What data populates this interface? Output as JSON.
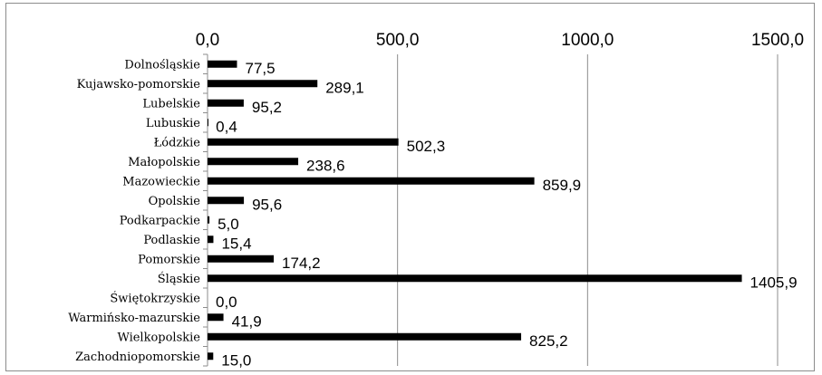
{
  "chart_data": {
    "type": "bar",
    "orientation": "horizontal",
    "axis_position": "top",
    "categories": [
      "Dolnośląskie",
      "Kujawsko-pomorskie",
      "Lubelskie",
      "Lubuskie",
      "Łódzkie",
      "Małopolskie",
      "Mazowieckie",
      "Opolskie",
      "Podkarpackie",
      "Podlaskie",
      "Pomorskie",
      "Śląskie",
      "Świętokrzyskie",
      "Warmińsko-mazurskie",
      "Wielkopolskie",
      "Zachodniopomorskie"
    ],
    "values": [
      77.5,
      289.1,
      95.2,
      0.4,
      502.3,
      238.6,
      859.9,
      95.6,
      5.0,
      15.4,
      174.2,
      1405.9,
      0.0,
      41.9,
      825.2,
      15.0
    ],
    "value_labels": [
      "77,5",
      "289,1",
      "95,2",
      "0,4",
      "502,3",
      "238,6",
      "859,9",
      "95,6",
      "5,0",
      "15,4",
      "174,2",
      "1405,9",
      "0,0",
      "41,9",
      "825,2",
      "15,0"
    ],
    "xlim": [
      0,
      1500
    ],
    "ticks": [
      0,
      500,
      1000,
      1500
    ],
    "tick_labels": [
      "0,0",
      "500,0",
      "1000,0",
      "1500,0"
    ],
    "grid": "vertical",
    "legend": "none",
    "bar_color": "#000000",
    "grid_color": "#8c8c8c"
  }
}
